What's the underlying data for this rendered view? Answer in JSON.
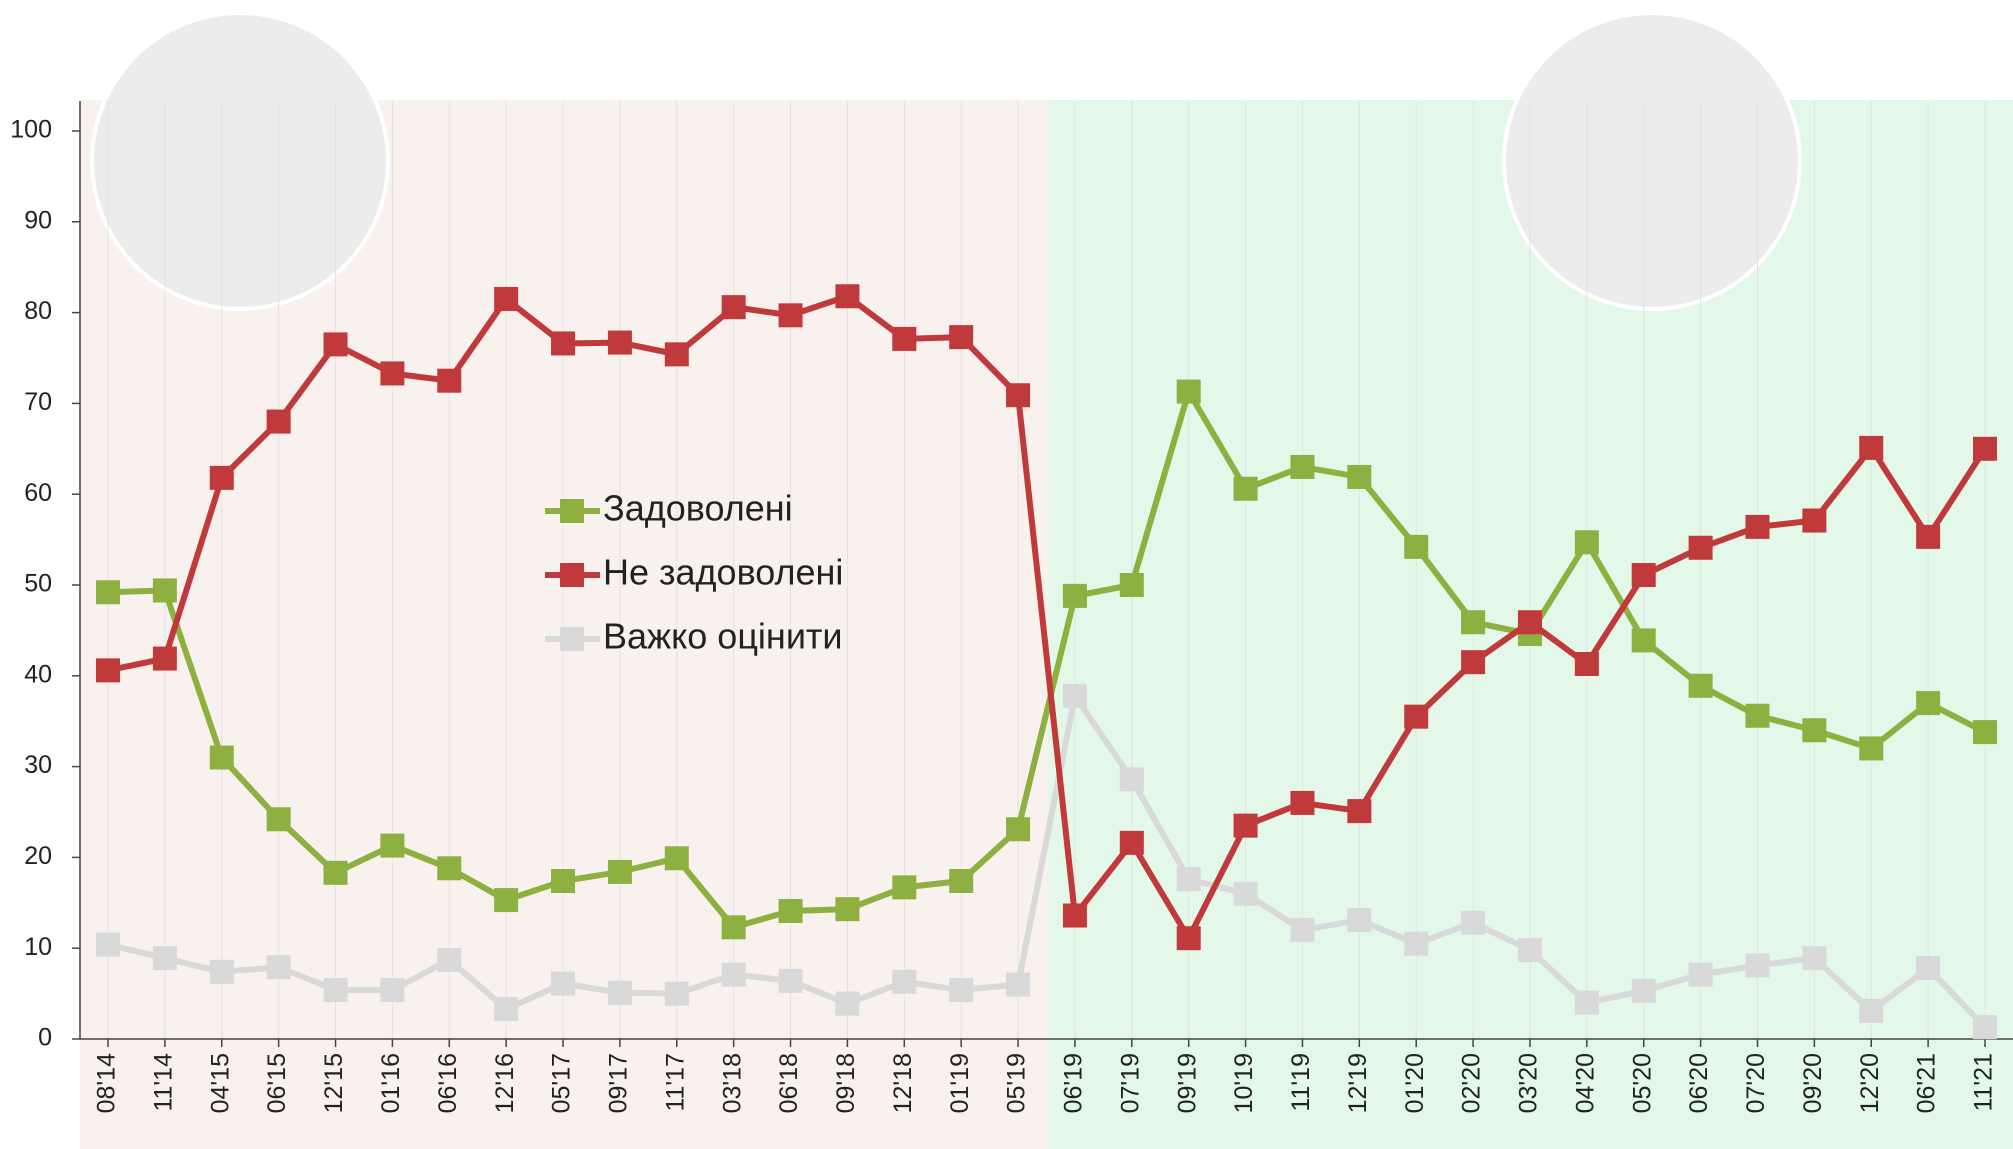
{
  "chart_data": {
    "type": "line",
    "categories": [
      "08'14",
      "11'14",
      "04'15",
      "06'15",
      "12'15",
      "01'16",
      "06'16",
      "12'16",
      "05'17",
      "09'17",
      "11'17",
      "03'18",
      "06'18",
      "09'18",
      "12'18",
      "01'19",
      "05'19",
      "06'19",
      "07'19",
      "09'19",
      "10'19",
      "11'19",
      "12'19",
      "01'20",
      "02'20",
      "03'20",
      "04'20",
      "05'20",
      "06'20",
      "07'20",
      "09'20",
      "12'20",
      "06'21",
      "11'21"
    ],
    "series": [
      {
        "name": "Задоволені",
        "color": "#8db040",
        "values": [
          49.2,
          49.4,
          31,
          24.2,
          18.3,
          21.3,
          18.8,
          15.3,
          17.4,
          18.4,
          19.9,
          12.3,
          14.1,
          14.3,
          16.7,
          17.4,
          23.1,
          48.8,
          50,
          71.3,
          60.6,
          63,
          61.9,
          54.2,
          45.9,
          44.6,
          54.7,
          43.9,
          38.9,
          35.6,
          34,
          32,
          37,
          33.8
        ]
      },
      {
        "name": "Не задоволені",
        "color": "#c0393b",
        "values": [
          40.6,
          41.9,
          61.8,
          68,
          76.5,
          73.3,
          72.5,
          81.5,
          76.6,
          76.7,
          75.4,
          80.6,
          79.7,
          81.8,
          77.1,
          77.3,
          70.9,
          13.6,
          21.6,
          11.1,
          23.5,
          26,
          25.1,
          35.5,
          41.5,
          45.9,
          41.3,
          51.1,
          54.1,
          56.4,
          57.1,
          65.1,
          55.3,
          65
        ]
      },
      {
        "name": "Важко оцінити",
        "color": "#d9d9d9",
        "values": [
          10.4,
          8.9,
          7.4,
          7.9,
          5.4,
          5.4,
          8.7,
          3.3,
          6.1,
          5.1,
          5,
          7.1,
          6.4,
          3.9,
          6.3,
          5.4,
          6,
          37.8,
          28.6,
          17.6,
          16,
          12,
          13.1,
          10.5,
          12.8,
          9.8,
          4,
          5.3,
          7.1,
          8.1,
          8.9,
          3.1,
          7.8,
          1.3
        ]
      }
    ],
    "ylim": [
      0,
      100
    ],
    "yticks": [
      0,
      10,
      20,
      30,
      40,
      50,
      60,
      70,
      80,
      90,
      100
    ],
    "grid": true
  }
}
